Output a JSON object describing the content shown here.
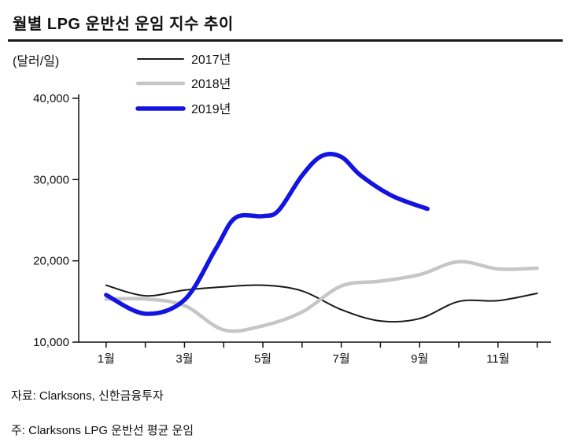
{
  "title": "월별 LPG 운반선 운임 지수 추이",
  "unit_label": "(달러/일)",
  "footer": {
    "source": "자료: Clarksons, 신한금융투자",
    "note": "주: Clarksons LPG 운반선 평균 운임"
  },
  "chart_data": {
    "type": "line",
    "title": "월별 LPG 운반선 운임 지수 추이",
    "xlabel": "",
    "ylabel": "(달러/일)",
    "ylim": [
      10000,
      40000
    ],
    "yticks": [
      10000,
      20000,
      30000,
      40000
    ],
    "xticks": [
      {
        "v": 1,
        "label": "1월"
      },
      {
        "v": 3,
        "label": "3월"
      },
      {
        "v": 5,
        "label": "5월"
      },
      {
        "v": 7,
        "label": "7월"
      },
      {
        "v": 9,
        "label": "9월"
      },
      {
        "v": 11,
        "label": "11월"
      }
    ],
    "legend_position": "top",
    "grid": false,
    "series": [
      {
        "name": "2017년",
        "color": "#1a1a1a",
        "width": 2,
        "x": [
          1,
          2,
          3,
          4,
          5,
          6,
          7,
          8,
          9,
          10,
          11,
          12
        ],
        "y": [
          17000,
          15700,
          16400,
          16800,
          17000,
          16300,
          14000,
          12600,
          12900,
          15000,
          15100,
          16000
        ]
      },
      {
        "name": "2018년",
        "color": "#c6c6c6",
        "width": 4.5,
        "x": [
          1,
          2,
          3,
          4,
          5,
          6,
          7,
          8,
          9,
          10,
          11,
          12
        ],
        "y": [
          15300,
          15300,
          14500,
          11500,
          12000,
          13700,
          16900,
          17500,
          18300,
          19900,
          19000,
          19100
        ]
      },
      {
        "name": "2019년",
        "color": "#1414e0",
        "width": 5.5,
        "x": [
          1,
          2,
          3,
          3.8,
          4.3,
          5,
          5.4,
          6,
          6.5,
          7,
          7.5,
          8.3,
          9.2
        ],
        "y": [
          15800,
          13500,
          15200,
          21500,
          25300,
          25500,
          26200,
          30500,
          32900,
          32800,
          30500,
          28000,
          26400
        ]
      }
    ]
  }
}
